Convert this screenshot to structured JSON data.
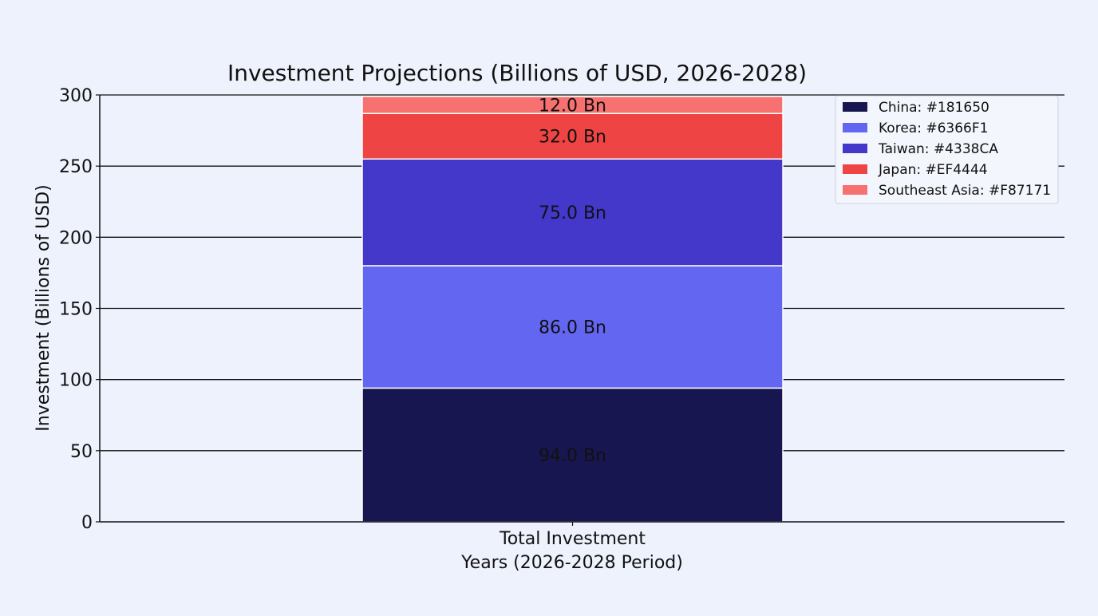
{
  "chart_data": {
    "type": "bar",
    "stacked": true,
    "title": "Investment Projections (Billions of USD, 2026-2028)",
    "xlabel": "Years (2026-2028 Period)",
    "ylabel": "Investment (Billions of USD)",
    "categories": [
      "Total Investment"
    ],
    "ylim": [
      0,
      300
    ],
    "yticks": [
      0,
      50,
      100,
      150,
      200,
      250,
      300
    ],
    "grid": "horizontal",
    "legend_position": "top-right",
    "value_label_suffix": " Bn",
    "series": [
      {
        "name": "China: #181650",
        "values": [
          94.0
        ],
        "color": "#181650",
        "label": "94.0 Bn"
      },
      {
        "name": "Korea: #6366F1",
        "values": [
          86.0
        ],
        "color": "#6366F1",
        "label": "86.0 Bn"
      },
      {
        "name": "Taiwan: #4338CA",
        "values": [
          75.0
        ],
        "color": "#4338CA",
        "label": "75.0 Bn"
      },
      {
        "name": "Japan: #EF4444",
        "values": [
          32.0
        ],
        "color": "#EF4444",
        "label": "32.0 Bn"
      },
      {
        "name": "Southeast Asia: #F87171",
        "values": [
          12.0
        ],
        "color": "#F87171",
        "label": "12.0 Bn"
      }
    ]
  }
}
